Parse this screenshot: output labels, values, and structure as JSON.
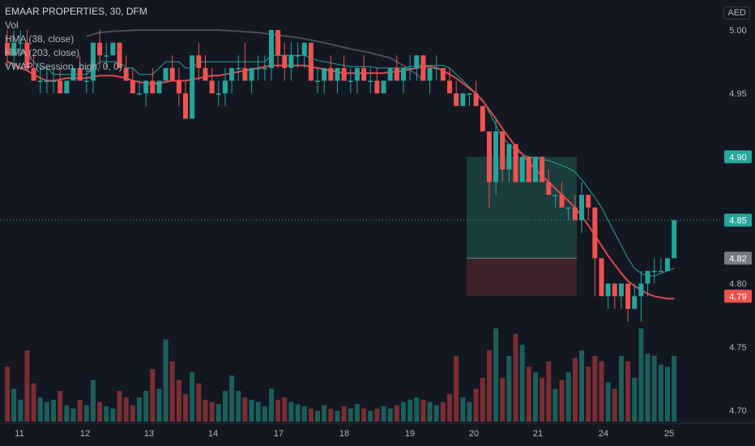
{
  "legend": {
    "symbol": "EMAAR PROPERTIES, 30, DFM",
    "vol": "Vol",
    "hma_fast": "HMA (38, close)",
    "hma_slow": "HMA (203, close)",
    "vwap": "VWAP (Session, high, 0, 0)"
  },
  "currency": "AED",
  "colors": {
    "background": "#131722",
    "up": "#26a69a",
    "down": "#ef5350",
    "up_volume": "#1b5e5a",
    "down_volume": "#7a2e33",
    "hma_fast": "#e0484e",
    "vwap": "#26a69a",
    "hma_slow": "#4a4d57",
    "profit_zone": "#1b3d3d",
    "loss_zone": "#3b2228"
  },
  "chart_data": {
    "type": "candlestick",
    "y_axis": {
      "range": [
        4.69,
        5.01
      ],
      "ticks": [
        "5.00",
        "4.95",
        "4.90",
        "4.85",
        "4.80",
        "4.75",
        "4.70"
      ]
    },
    "x_axis": {
      "tick_labels": [
        "11",
        "12",
        "13",
        "14",
        "17",
        "18",
        "19",
        "20",
        "21",
        "24",
        "25"
      ]
    },
    "price_labels": [
      {
        "value": "4.90",
        "role": "take-profit",
        "color": "#26a69a"
      },
      {
        "value": "4.85",
        "role": "last-price",
        "color": "#26a69a"
      },
      {
        "value": "4.82",
        "role": "entry",
        "color": "#787b86"
      },
      {
        "value": "4.79",
        "role": "stop-loss",
        "color": "#ef5350"
      }
    ],
    "position": {
      "entry": 4.82,
      "target": 4.9,
      "stop": 4.79
    },
    "candles": [
      [
        4.99,
        5.0,
        4.97,
        4.98,
        50
      ],
      [
        4.98,
        5.0,
        4.97,
        4.99,
        30
      ],
      [
        4.99,
        5.0,
        4.98,
        4.99,
        20
      ],
      [
        4.99,
        5.0,
        4.97,
        4.97,
        65
      ],
      [
        4.97,
        4.98,
        4.96,
        4.96,
        35
      ],
      [
        4.96,
        4.97,
        4.95,
        4.96,
        22
      ],
      [
        4.96,
        4.97,
        4.95,
        4.96,
        18
      ],
      [
        4.96,
        4.97,
        4.95,
        4.96,
        20
      ],
      [
        4.96,
        4.97,
        4.95,
        4.95,
        28
      ],
      [
        4.95,
        4.96,
        4.95,
        4.96,
        15
      ],
      [
        4.96,
        4.97,
        4.96,
        4.97,
        12
      ],
      [
        4.97,
        4.98,
        4.96,
        4.96,
        20
      ],
      [
        4.96,
        4.97,
        4.95,
        4.96,
        15
      ],
      [
        4.96,
        4.99,
        4.95,
        4.99,
        38
      ],
      [
        4.99,
        5.0,
        4.97,
        4.98,
        18
      ],
      [
        4.98,
        4.99,
        4.97,
        4.98,
        14
      ],
      [
        4.98,
        4.99,
        4.98,
        4.99,
        12
      ],
      [
        4.99,
        4.99,
        4.97,
        4.97,
        28
      ],
      [
        4.97,
        4.98,
        4.96,
        4.96,
        22
      ],
      [
        4.96,
        4.97,
        4.95,
        4.95,
        15
      ],
      [
        4.95,
        4.96,
        4.95,
        4.95,
        22
      ],
      [
        4.95,
        4.96,
        4.94,
        4.96,
        28
      ],
      [
        4.96,
        4.97,
        4.95,
        4.95,
        48
      ],
      [
        4.95,
        4.96,
        4.95,
        4.96,
        30
      ],
      [
        4.96,
        4.97,
        4.96,
        4.97,
        75
      ],
      [
        4.97,
        4.98,
        4.96,
        4.96,
        55
      ],
      [
        4.96,
        4.97,
        4.94,
        4.95,
        38
      ],
      [
        4.95,
        4.96,
        4.93,
        4.93,
        25
      ],
      [
        4.93,
        4.98,
        4.93,
        4.98,
        45
      ],
      [
        4.98,
        4.99,
        4.96,
        4.97,
        35
      ],
      [
        4.97,
        4.98,
        4.96,
        4.96,
        20
      ],
      [
        4.96,
        4.97,
        4.95,
        4.95,
        18
      ],
      [
        4.95,
        4.96,
        4.94,
        4.95,
        16
      ],
      [
        4.95,
        4.97,
        4.94,
        4.96,
        28
      ],
      [
        4.96,
        4.97,
        4.95,
        4.97,
        42
      ],
      [
        4.97,
        4.98,
        4.96,
        4.97,
        28
      ],
      [
        4.97,
        4.99,
        4.96,
        4.96,
        22
      ],
      [
        4.96,
        4.97,
        4.95,
        4.97,
        20
      ],
      [
        4.97,
        4.98,
        4.96,
        4.97,
        18
      ],
      [
        4.97,
        4.98,
        4.96,
        4.97,
        14
      ],
      [
        4.97,
        5.0,
        4.96,
        5.0,
        30
      ],
      [
        5.0,
        5.0,
        4.97,
        4.98,
        20
      ],
      [
        4.98,
        4.99,
        4.96,
        4.97,
        22
      ],
      [
        4.97,
        4.99,
        4.96,
        4.98,
        18
      ],
      [
        4.98,
        4.99,
        4.97,
        4.98,
        16
      ],
      [
        4.98,
        4.99,
        4.97,
        4.99,
        14
      ],
      [
        4.99,
        4.99,
        4.96,
        4.96,
        12
      ],
      [
        4.96,
        4.97,
        4.95,
        4.96,
        10
      ],
      [
        4.96,
        4.97,
        4.95,
        4.97,
        15
      ],
      [
        4.97,
        4.98,
        4.96,
        4.96,
        12
      ],
      [
        4.96,
        4.97,
        4.95,
        4.97,
        10
      ],
      [
        4.97,
        4.98,
        4.96,
        4.96,
        14
      ],
      [
        4.96,
        4.97,
        4.95,
        4.96,
        12
      ],
      [
        4.96,
        4.97,
        4.95,
        4.97,
        16
      ],
      [
        4.97,
        4.98,
        4.96,
        4.96,
        12
      ],
      [
        4.96,
        4.97,
        4.95,
        4.96,
        10
      ],
      [
        4.96,
        4.97,
        4.95,
        4.95,
        12
      ],
      [
        4.95,
        4.96,
        4.95,
        4.96,
        14
      ],
      [
        4.96,
        4.97,
        4.96,
        4.97,
        12
      ],
      [
        4.97,
        4.98,
        4.96,
        4.96,
        15
      ],
      [
        4.96,
        4.97,
        4.95,
        4.97,
        18
      ],
      [
        4.97,
        4.98,
        4.96,
        4.97,
        20
      ],
      [
        4.97,
        4.98,
        4.96,
        4.98,
        22
      ],
      [
        4.98,
        4.98,
        4.96,
        4.96,
        20
      ],
      [
        4.96,
        4.97,
        4.95,
        4.97,
        18
      ],
      [
        4.97,
        4.98,
        4.96,
        4.97,
        15
      ],
      [
        4.97,
        4.97,
        4.96,
        4.96,
        18
      ],
      [
        4.96,
        4.97,
        4.95,
        4.95,
        25
      ],
      [
        4.95,
        4.96,
        4.94,
        4.94,
        60
      ],
      [
        4.94,
        4.95,
        4.94,
        4.95,
        22
      ],
      [
        4.95,
        4.95,
        4.94,
        4.95,
        18
      ],
      [
        4.95,
        4.96,
        4.94,
        4.94,
        30
      ],
      [
        4.94,
        4.94,
        4.92,
        4.92,
        40
      ],
      [
        4.92,
        4.92,
        4.86,
        4.88,
        65
      ],
      [
        4.88,
        4.93,
        4.87,
        4.92,
        85
      ],
      [
        4.92,
        4.92,
        4.88,
        4.89,
        40
      ],
      [
        4.89,
        4.91,
        4.88,
        4.91,
        60
      ],
      [
        4.91,
        4.91,
        4.88,
        4.88,
        80
      ],
      [
        4.88,
        4.9,
        4.88,
        4.9,
        70
      ],
      [
        4.9,
        4.9,
        4.88,
        4.88,
        50
      ],
      [
        4.88,
        4.9,
        4.88,
        4.9,
        45
      ],
      [
        4.9,
        4.9,
        4.88,
        4.88,
        40
      ],
      [
        4.88,
        4.89,
        4.87,
        4.87,
        55
      ],
      [
        4.87,
        4.87,
        4.86,
        4.87,
        30
      ],
      [
        4.87,
        4.88,
        4.86,
        4.86,
        38
      ],
      [
        4.86,
        4.86,
        4.85,
        4.86,
        45
      ],
      [
        4.86,
        4.87,
        4.85,
        4.85,
        58
      ],
      [
        4.85,
        4.88,
        4.84,
        4.87,
        65
      ],
      [
        4.87,
        4.87,
        4.85,
        4.86,
        50
      ],
      [
        4.86,
        4.86,
        4.79,
        4.82,
        60
      ],
      [
        4.82,
        4.82,
        4.79,
        4.79,
        55
      ],
      [
        4.79,
        4.8,
        4.78,
        4.8,
        36
      ],
      [
        4.8,
        4.8,
        4.78,
        4.79,
        30
      ],
      [
        4.79,
        4.8,
        4.78,
        4.8,
        60
      ],
      [
        4.8,
        4.8,
        4.77,
        4.78,
        55
      ],
      [
        4.78,
        4.8,
        4.78,
        4.79,
        40
      ],
      [
        4.79,
        4.81,
        4.77,
        4.8,
        85
      ],
      [
        4.8,
        4.81,
        4.79,
        4.81,
        62
      ],
      [
        4.81,
        4.82,
        4.8,
        4.81,
        60
      ],
      [
        4.81,
        4.82,
        4.81,
        4.81,
        52
      ],
      [
        4.81,
        4.82,
        4.81,
        4.82,
        50
      ],
      [
        4.82,
        4.85,
        4.82,
        4.85,
        60
      ]
    ],
    "vwap": [
      4.985,
      4.985,
      4.985,
      4.98,
      4.975,
      4.97,
      4.97,
      4.965,
      4.965,
      4.965,
      4.965,
      4.965,
      4.965,
      4.97,
      4.975,
      4.975,
      4.975,
      4.975,
      4.97,
      4.97,
      4.965,
      4.965,
      4.965,
      4.97,
      4.975,
      4.975,
      4.975,
      4.97,
      4.97,
      4.975,
      4.975,
      4.975,
      4.975,
      4.975,
      4.975,
      4.975,
      4.975,
      4.975,
      4.975,
      4.975,
      4.98,
      4.98,
      4.98,
      4.98,
      4.98,
      4.98,
      4.978,
      4.976,
      4.975,
      4.974,
      4.973,
      4.972,
      4.971,
      4.971,
      4.971,
      4.971,
      4.97,
      4.97,
      4.97,
      4.97,
      4.97,
      4.971,
      4.972,
      4.972,
      4.972,
      4.972,
      4.972,
      4.97,
      4.965,
      4.96,
      4.955,
      4.95,
      4.945,
      4.935,
      4.925,
      4.915,
      4.91,
      4.905,
      4.902,
      4.9,
      4.899,
      4.898,
      4.897,
      4.895,
      4.893,
      4.891,
      4.888,
      4.882,
      4.875,
      4.868,
      4.86,
      4.85,
      4.84,
      4.83,
      4.82,
      4.812,
      4.808,
      4.806,
      4.806,
      4.808,
      4.81,
      4.812
    ],
    "hma_fast": [
      4.975,
      4.973,
      4.97,
      4.968,
      4.965,
      4.962,
      4.96,
      4.96,
      4.961,
      4.962,
      4.962,
      4.962,
      4.962,
      4.963,
      4.964,
      4.964,
      4.964,
      4.963,
      4.962,
      4.96,
      4.959,
      4.958,
      4.958,
      4.958,
      4.959,
      4.96,
      4.96,
      4.96,
      4.961,
      4.962,
      4.963,
      4.964,
      4.964,
      4.965,
      4.966,
      4.967,
      4.968,
      4.969,
      4.97,
      4.971,
      4.972,
      4.972,
      4.972,
      4.972,
      4.972,
      4.972,
      4.971,
      4.97,
      4.969,
      4.968,
      4.967,
      4.966,
      4.966,
      4.966,
      4.966,
      4.966,
      4.966,
      4.966,
      4.967,
      4.967,
      4.968,
      4.969,
      4.97,
      4.971,
      4.971,
      4.97,
      4.968,
      4.965,
      4.962,
      4.958,
      4.954,
      4.95,
      4.944,
      4.937,
      4.93,
      4.922,
      4.915,
      4.908,
      4.902,
      4.896,
      4.89,
      4.885,
      4.88,
      4.875,
      4.87,
      4.865,
      4.86,
      4.853,
      4.846,
      4.838,
      4.83,
      4.822,
      4.815,
      4.808,
      4.802,
      4.798,
      4.795,
      4.792,
      4.79,
      4.789,
      4.788,
      4.788
    ],
    "hma_slow": [
      [
        12,
        4.995
      ],
      [
        14,
        4.998
      ],
      [
        16,
        4.999
      ],
      [
        20,
        5.0
      ],
      [
        26,
        5.0
      ],
      [
        32,
        5.0
      ],
      [
        38,
        4.998
      ],
      [
        44,
        4.994
      ],
      [
        48,
        4.99
      ],
      [
        52,
        4.985
      ],
      [
        55,
        4.982
      ],
      [
        58,
        4.978
      ],
      [
        60,
        4.972
      ],
      [
        62,
        4.965
      ],
      [
        63,
        4.96
      ]
    ]
  }
}
